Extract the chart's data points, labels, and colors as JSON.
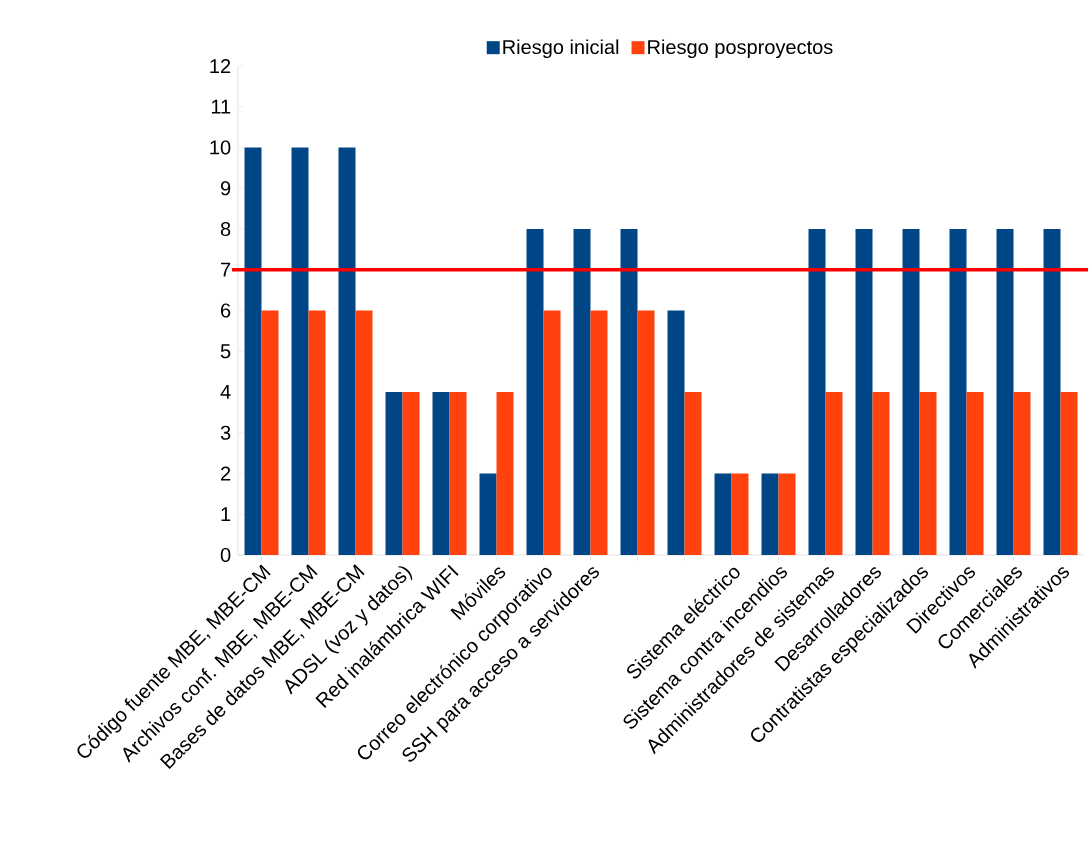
{
  "chart_data": {
    "type": "bar",
    "categories": [
      "Código fuente MBE, MBE-CM",
      "Archivos conf. MBE, MBE-CM",
      "Bases de datos MBE, MBE-CM",
      "ADSL (voz y datos)",
      "Red inalámbrica WIFI",
      "Móviles",
      "Correo electrónico corporativo",
      "SSH para acceso a servidores",
      null,
      null,
      "Sistema eléctrico",
      "Sistema contra incendios",
      "Administradores de sistemas",
      "Desarrolladores",
      "Contratistas especializados",
      "Directivos",
      "Comerciales",
      "Administrativos"
    ],
    "series": [
      {
        "name": "Riesgo inicial",
        "color": "#004586",
        "values": [
          10,
          10,
          10,
          4,
          4,
          2,
          8,
          8,
          8,
          6,
          2,
          2,
          8,
          8,
          8,
          8,
          8,
          8
        ]
      },
      {
        "name": "Riesgo posproyectos",
        "color": "#ff420e",
        "values": [
          6,
          6,
          6,
          4,
          4,
          4,
          6,
          6,
          6,
          4,
          2,
          2,
          4,
          4,
          4,
          4,
          4,
          4
        ]
      }
    ],
    "ylim": [
      0,
      12
    ],
    "yticks": [
      0,
      1,
      2,
      3,
      4,
      5,
      6,
      7,
      8,
      9,
      10,
      11,
      12
    ],
    "ref_lines": [
      {
        "axis": "y",
        "value": 7,
        "color": "#ff0000"
      }
    ],
    "grid": false,
    "legend": "top"
  }
}
